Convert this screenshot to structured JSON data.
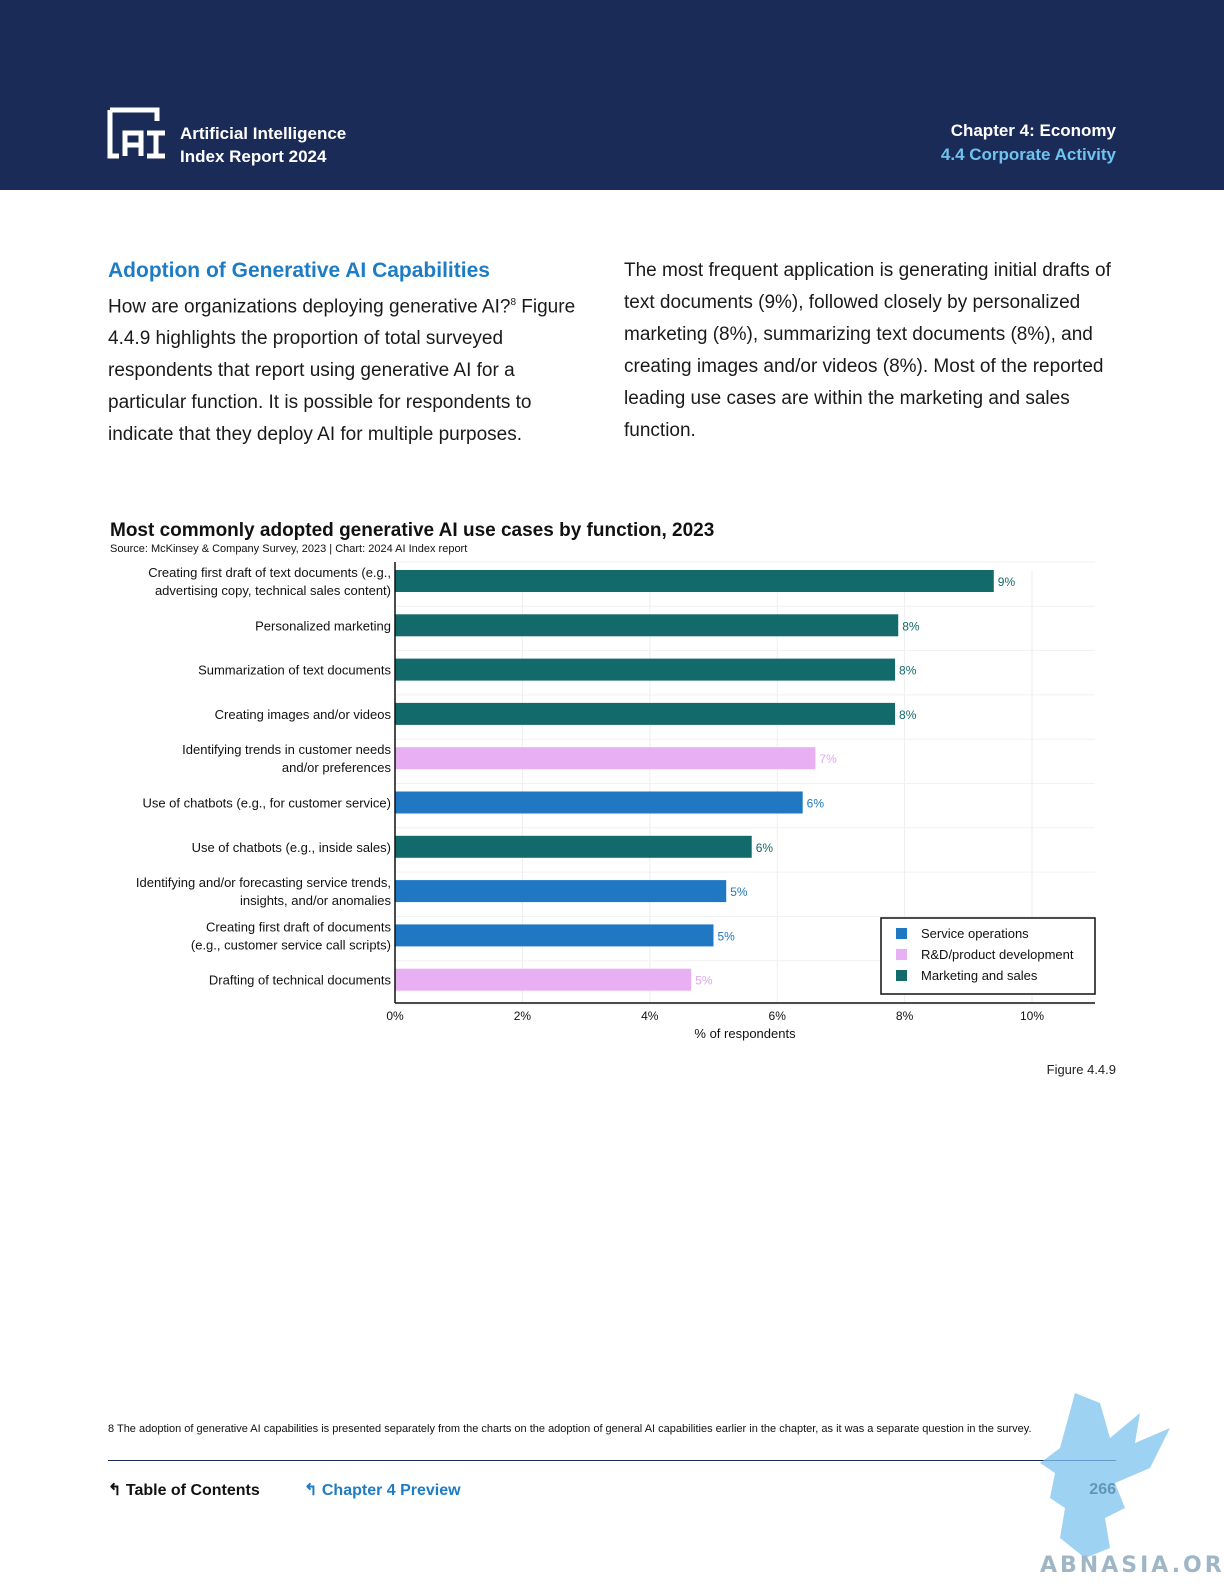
{
  "header": {
    "brand_line1": "Artificial Intelligence",
    "brand_line2": "Index Report 2024",
    "chapter": "Chapter 4: Economy",
    "section": "4.4 Corporate Activity",
    "colors": {
      "bar": "#1b2b57",
      "accent": "#6fc3f0"
    }
  },
  "body": {
    "heading": "Adoption of Generative AI Capabilities",
    "left_text": "How are organizations deploying generative AI?",
    "left_sup": "8",
    "left_text2": " Figure 4.4.9 highlights the proportion of total surveyed respondents that report using generative AI for a particular function. It is possible for respondents to indicate that they deploy AI for multiple purposes.",
    "right_text": "The most frequent application is generating initial drafts of text documents (9%), followed closely by personalized marketing (8%), summarizing text documents (8%), and creating images and/or videos (8%). Most of the reported leading use cases are within the marketing and sales function."
  },
  "chart_data": {
    "type": "bar",
    "orientation": "horizontal",
    "title": "Most commonly adopted generative AI use cases by function, 2023",
    "source": "Source: McKinsey & Company Survey, 2023 | Chart: 2024 AI Index report",
    "xlabel": "% of respondents",
    "xlim": [
      0,
      11
    ],
    "xticks": [
      "0%",
      "2%",
      "4%",
      "6%",
      "8%",
      "10%"
    ],
    "grid": true,
    "legend_position": "bottom-right",
    "legend": [
      {
        "name": "Service operations",
        "color": "#1f78c1"
      },
      {
        "name": "R&D/product development",
        "color": "#e8b0f3"
      },
      {
        "name": "Marketing and sales",
        "color": "#136a6b"
      }
    ],
    "categories": [
      [
        "Creating first draft of text documents (e.g.,",
        "advertising copy, technical sales content)"
      ],
      [
        "Personalized marketing"
      ],
      [
        "Summarization of text documents"
      ],
      [
        "Creating images and/or videos"
      ],
      [
        "Identifying trends in customer needs",
        "and/or preferences"
      ],
      [
        "Use of chatbots (e.g., for customer service)"
      ],
      [
        "Use of chatbots (e.g., inside sales)"
      ],
      [
        "Identifying and/or forecasting service trends,",
        "insights, and/or anomalies"
      ],
      [
        "Creating first draft of documents",
        "(e.g., customer service call scripts)"
      ],
      [
        "Drafting of technical documents"
      ]
    ],
    "values": [
      9.4,
      7.9,
      7.85,
      7.85,
      6.6,
      6.4,
      5.6,
      5.2,
      5.0,
      4.65
    ],
    "labels": [
      "9%",
      "8%",
      "8%",
      "8%",
      "7%",
      "6%",
      "6%",
      "5%",
      "5%",
      "5%"
    ],
    "functions": [
      2,
      2,
      2,
      2,
      1,
      0,
      2,
      0,
      0,
      1
    ]
  },
  "figure_label": "Figure 4.4.9",
  "footnote": "8 The adoption of generative AI capabilities is presented separately from the charts on the adoption of general AI capabilities earlier in the chapter, as it was a separate question in the survey.",
  "footer": {
    "toc": "Table of Contents",
    "chapter_preview": "Chapter 4 Preview",
    "page_number": "266"
  },
  "watermark": "ABNASIA.ORG"
}
